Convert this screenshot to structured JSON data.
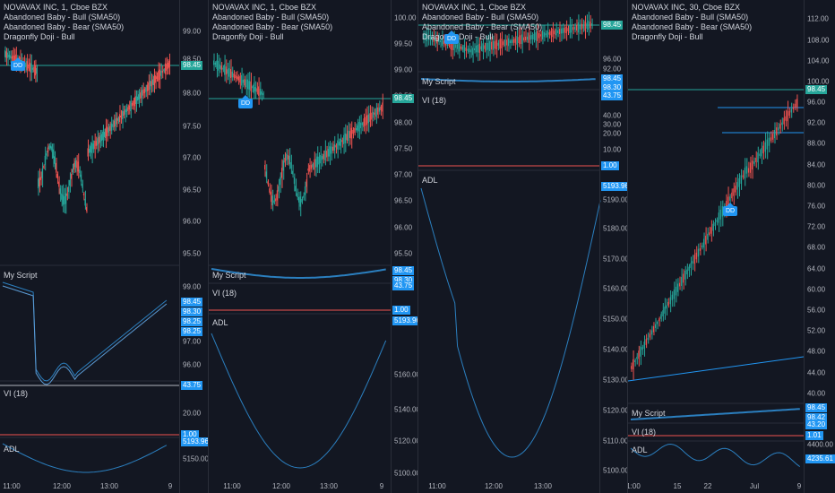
{
  "colors": {
    "bg": "#131722",
    "up": "#26a69a",
    "down": "#ef5350",
    "line": "#2b7fbf",
    "grid": "#2a2e39",
    "price_tag": "#26a69a",
    "vi_tag": "#2196f3",
    "adl_tag": "#2196f3",
    "red_tag": "#ef5350"
  },
  "panes": [
    {
      "title": "NOVAVAX INC, 1, Cboe BZX",
      "studies": [
        "Abandoned Baby - Bull (SMA50)",
        "Abandoned Baby - Bear (SMA50)",
        "Dragonfly Doji - Bull"
      ],
      "price_ticks": [
        "99.00",
        "98.50",
        "98.00",
        "97.50",
        "97.00",
        "96.50",
        "96.00",
        "95.50"
      ],
      "price_tag": "98.45",
      "dd_label": "DD",
      "sub1_label": "My Script",
      "sub1_ticks": [
        "99.00",
        "98.00",
        "97.00",
        "96.00"
      ],
      "sub1_tags": [
        "98.45",
        "98.30",
        "98.25",
        "98.25"
      ],
      "vi_label": "VI (18)",
      "vi_tags": [
        "43.75",
        "1.00"
      ],
      "vi_ticks": [
        "20.00"
      ],
      "adl_label": "ADL",
      "adl_tag": "5193.96",
      "adl_ticks": [
        "5150.00"
      ],
      "x_labels": [
        "11:00",
        "12:00",
        "13:00",
        "9"
      ]
    },
    {
      "title": "NOVAVAX INC, 1, Cboe BZX",
      "studies": [
        "Abandoned Baby - Bull (SMA50)",
        "Abandoned Baby - Bear (SMA50)",
        "Dragonfly Doji - Bull"
      ],
      "price_ticks": [
        "100.00",
        "99.50",
        "99.00",
        "98.50",
        "98.00",
        "97.50",
        "97.00",
        "96.50",
        "96.00",
        "95.50"
      ],
      "price_tag": "98.45",
      "dd_label": "DD",
      "sub1_label": "My Script",
      "sub1_tags": [
        "98.45",
        "98.30",
        "43.75"
      ],
      "vi_label": "VI (18)",
      "vi_tags": [
        "1.00"
      ],
      "adl_label": "ADL",
      "adl_tag": "5193.96",
      "adl_ticks": [
        "5160.00",
        "5140.00",
        "5120.00",
        "5100.00"
      ],
      "x_labels": [
        "11:00",
        "12:00",
        "13:00",
        "9"
      ]
    },
    {
      "title": "NOVAVAX INC, 1, Cboe BZX",
      "studies": [
        "Abandoned Baby - Bull (SMA50)",
        "Abandoned Baby - Bear (SMA50)",
        "Dragonfly Doji - Bull"
      ],
      "price_ticks": [
        "96.00",
        "92.00"
      ],
      "price_tag": "98.45",
      "dd_label": "DD",
      "sub1_label": "My Script",
      "sub1_tags": [
        "98.45",
        "98.30",
        "43.75"
      ],
      "sub1_ticks": [
        "40.00",
        "30.00",
        "20.00",
        "10.00"
      ],
      "vi_label": "VI (18)",
      "vi_tags": [
        "1.00"
      ],
      "adl_label": "ADL",
      "adl_tag": "5193.96",
      "adl_ticks": [
        "5190.00",
        "5180.00",
        "5170.00",
        "5160.00",
        "5150.00",
        "5140.00",
        "5130.00",
        "5120.00",
        "5110.00",
        "5100.00"
      ],
      "x_labels": [
        "11:00",
        "12:00",
        "13:00"
      ]
    },
    {
      "title": "NOVAVAX INC, 30, Cboe BZX",
      "studies": [
        "Abandoned Baby - Bull (SMA50)",
        "Abandoned Baby - Bear (SMA50)",
        "Dragonfly Doji - Bull"
      ],
      "price_ticks": [
        "112.00",
        "108.00",
        "104.00",
        "100.00",
        "96.00",
        "92.00",
        "88.00",
        "84.00",
        "80.00",
        "76.00",
        "72.00",
        "68.00",
        "64.00",
        "60.00",
        "56.00",
        "52.00",
        "48.00",
        "44.00",
        "40.00"
      ],
      "price_tag": "98.45",
      "dd_label": "DD",
      "sub1_label": "My Script",
      "sub1_tags": [
        "98.45",
        "98.42",
        "43.20"
      ],
      "vi_label": "VI (18)",
      "vi_tags": [
        "1.01"
      ],
      "adl_label": "ADL",
      "adl_tag": "4235.61",
      "adl_ticks": [
        "4400.00"
      ],
      "x_labels": [
        "1:00",
        "15",
        "22",
        "Jul",
        "9"
      ]
    }
  ]
}
